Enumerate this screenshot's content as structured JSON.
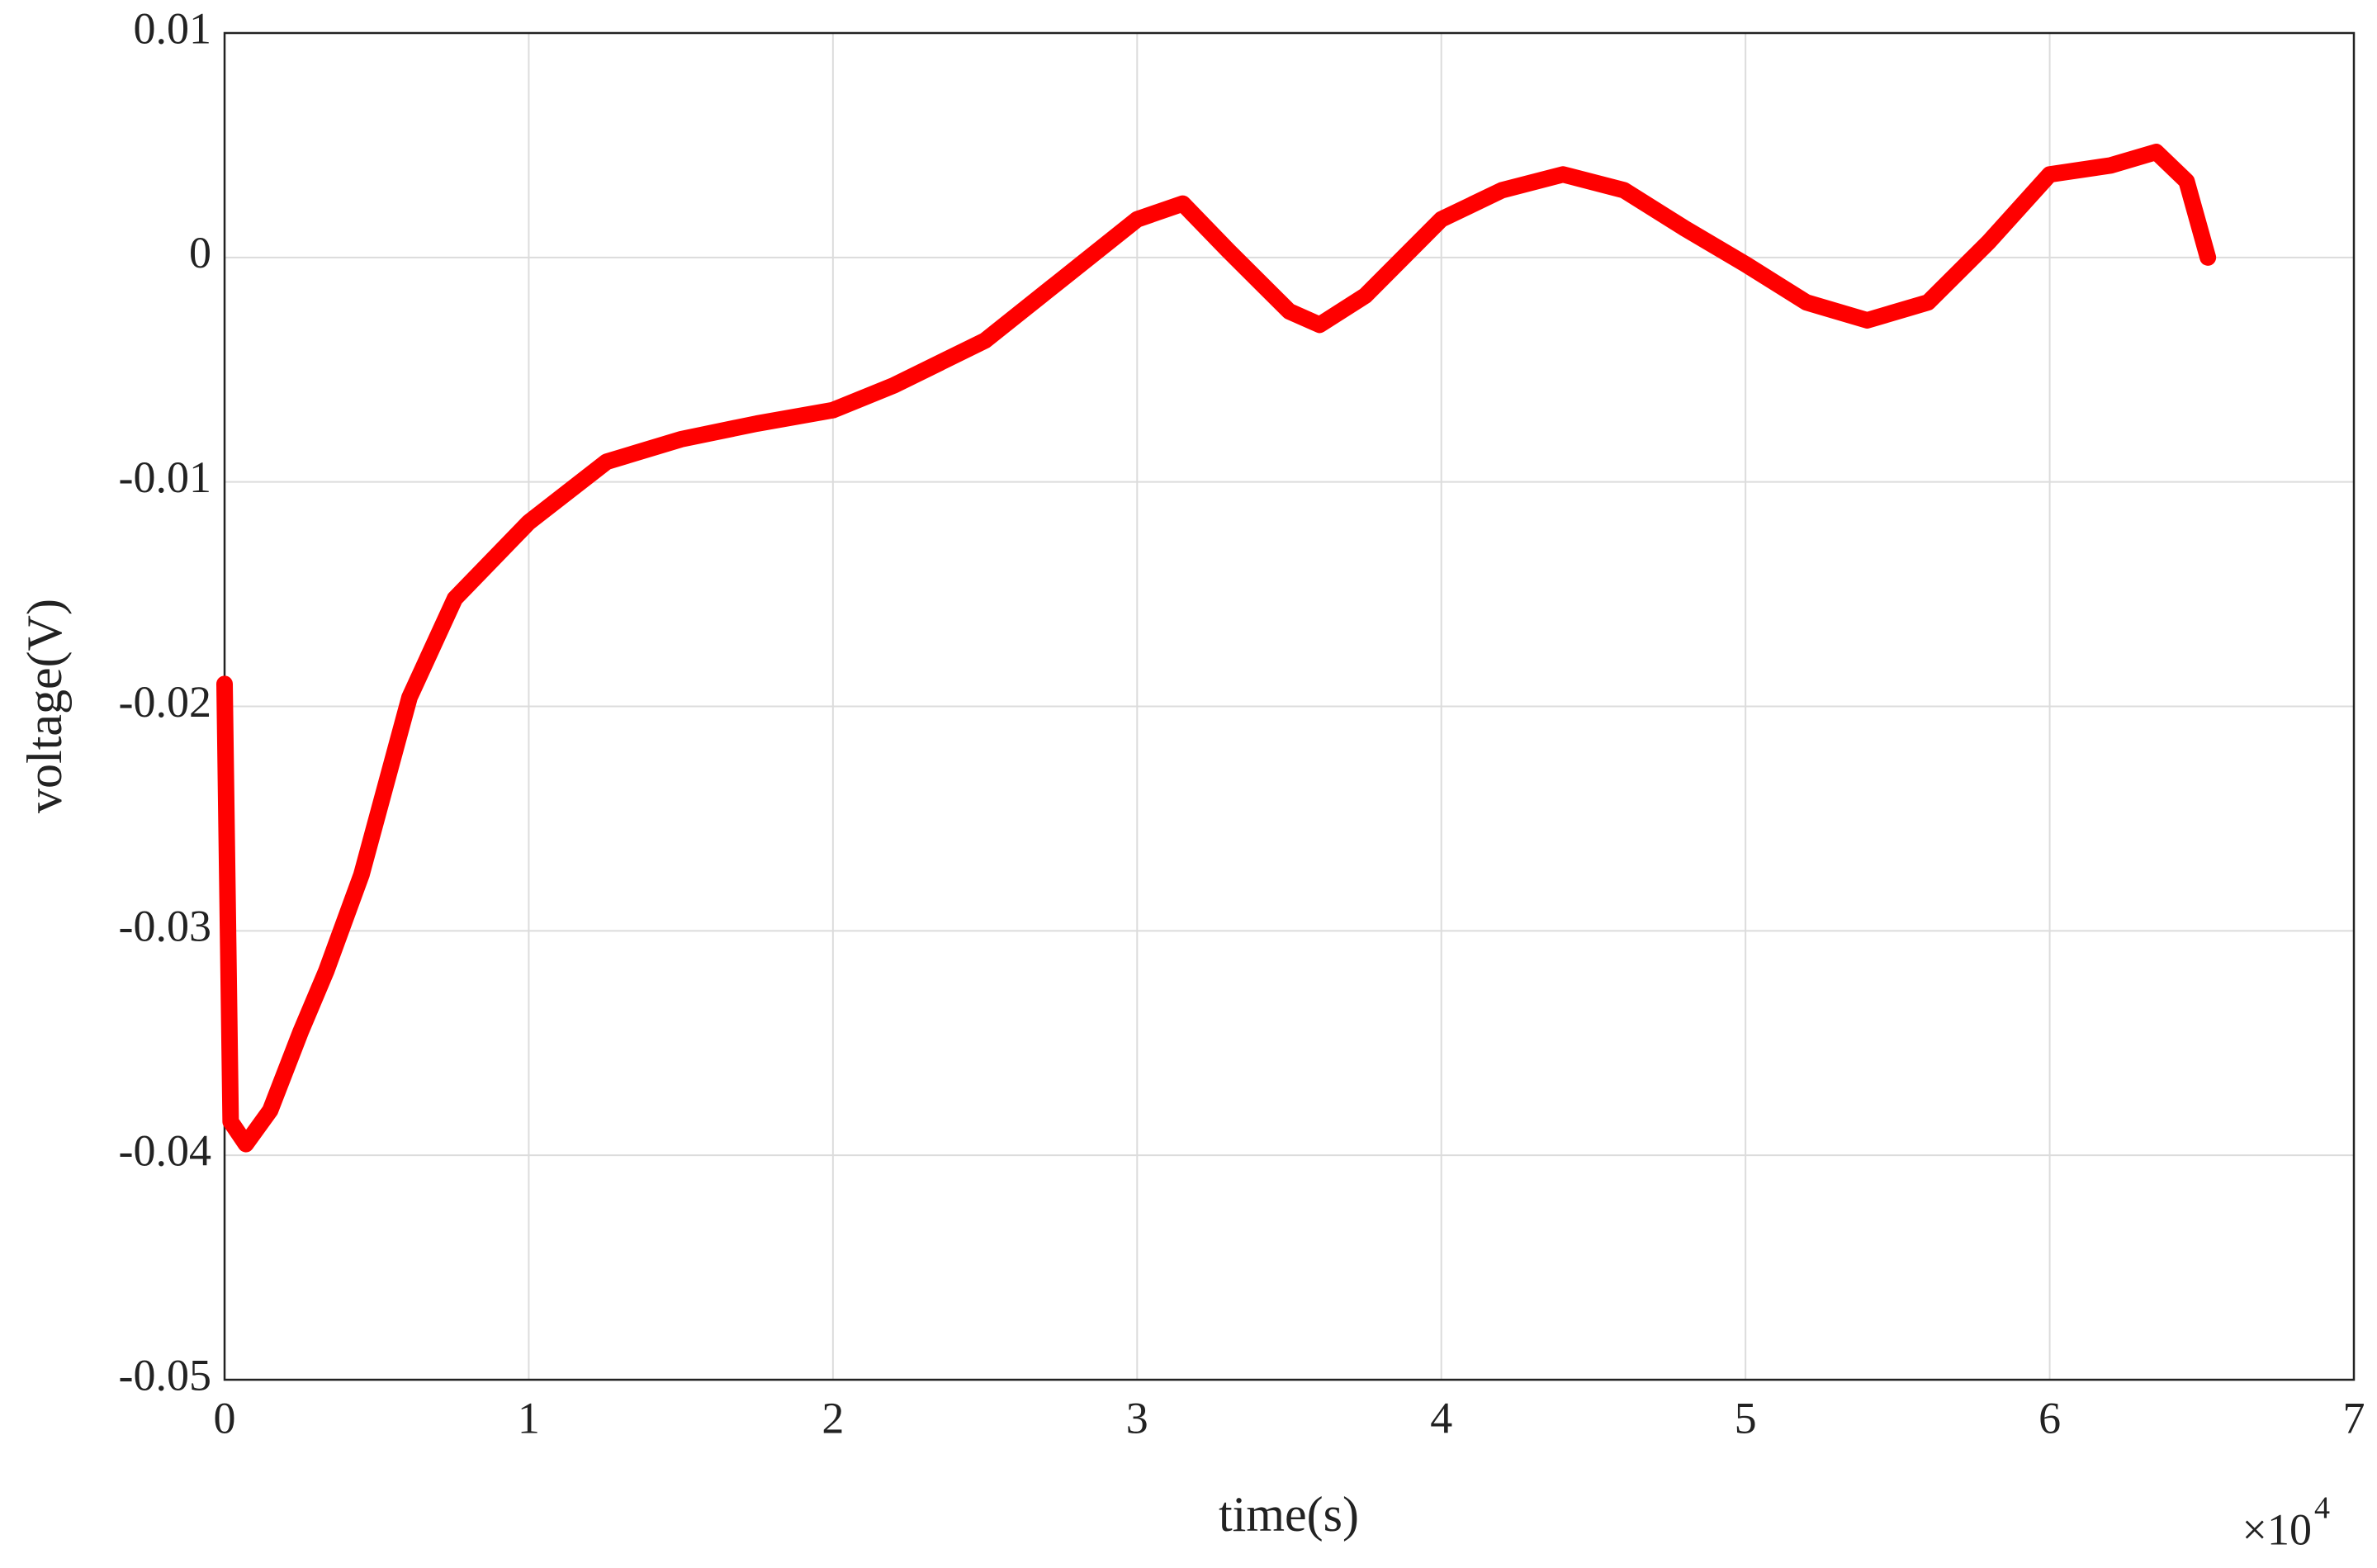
{
  "chart_data": {
    "type": "line",
    "xlabel": "time(s)",
    "ylabel": "voltage(V)",
    "x_multiplier": {
      "base": "×10",
      "exponent": "4"
    },
    "x": [
      0,
      200,
      700,
      1500,
      2500,
      3340,
      4500,
      6080,
      7570,
      10000,
      12560,
      15000,
      17500,
      20000,
      22000,
      25000,
      27500,
      30000,
      31500,
      33000,
      35000,
      36000,
      37500,
      40000,
      42000,
      44000,
      46000,
      48000,
      50000,
      52000,
      54000,
      56000,
      58000,
      60000,
      62000,
      63500,
      64500,
      65200
    ],
    "values": [
      -0.019,
      -0.0385,
      -0.0395,
      -0.038,
      -0.0345,
      -0.0318,
      -0.0275,
      -0.0196,
      -0.0152,
      -0.0118,
      -0.0091,
      -0.0081,
      -0.0074,
      -0.0068,
      -0.0057,
      -0.0037,
      -0.001,
      0.0017,
      0.0024,
      0.0003,
      -0.0024,
      -0.003,
      -0.0017,
      0.0017,
      0.003,
      0.0037,
      0.003,
      0.0013,
      -0.0003,
      -0.002,
      -0.0028,
      -0.002,
      0.0007,
      0.0037,
      0.0041,
      0.0047,
      0.0034,
      0
    ],
    "color": "#ff0000",
    "xlim": [
      0,
      70000
    ],
    "xticks": [
      0,
      {
        "value": 10000,
        "label": "1"
      },
      {
        "value": 20000,
        "label": "2"
      },
      {
        "value": 30000,
        "label": "3"
      },
      {
        "value": 40000,
        "label": "4"
      },
      {
        "value": 50000,
        "label": "5"
      },
      {
        "value": 60000,
        "label": "6"
      },
      {
        "value": 70000,
        "label": "7"
      }
    ],
    "ylim": [
      -0.05,
      0.01
    ],
    "yticks": [
      0.01,
      0,
      -0.01,
      -0.02,
      -0.03,
      -0.04,
      -0.05
    ],
    "grid": true
  }
}
